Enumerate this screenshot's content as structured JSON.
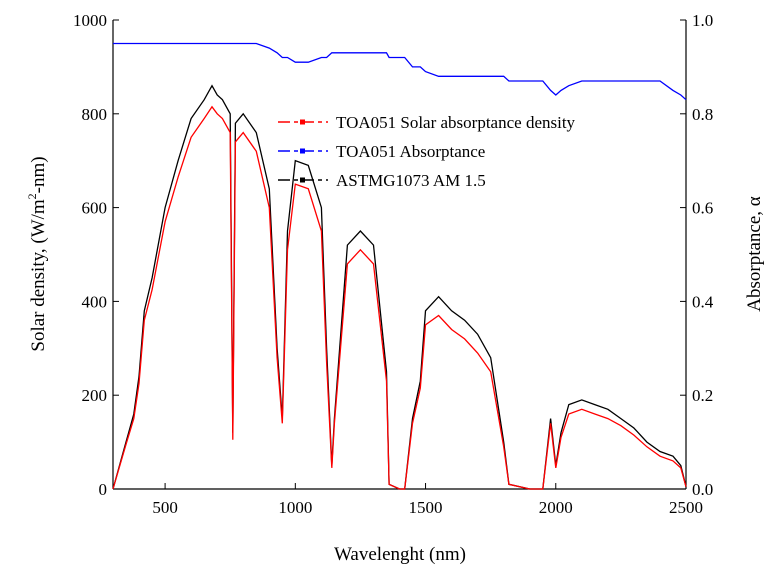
{
  "chart_data": {
    "type": "line",
    "x_label": "Wavelenght (nm)",
    "y_label": [
      "Solar density, (W/m",
      "2",
      "-nm)"
    ],
    "y2_label": "Absorptance, α",
    "x": [
      300,
      350,
      380,
      400,
      420,
      450,
      500,
      550,
      600,
      650,
      680,
      700,
      720,
      750,
      760,
      770,
      800,
      850,
      900,
      930,
      950,
      970,
      1000,
      1050,
      1100,
      1120,
      1140,
      1150,
      1200,
      1250,
      1300,
      1350,
      1360,
      1400,
      1420,
      1450,
      1480,
      1500,
      1550,
      1600,
      1650,
      1700,
      1750,
      1800,
      1820,
      1900,
      1950,
      1980,
      2000,
      2020,
      2050,
      2100,
      2150,
      2200,
      2250,
      2300,
      2350,
      2400,
      2450,
      2480,
      2500
    ],
    "series": [
      {
        "name": "TOA051 Solar absorptance density",
        "color": "#ff0000",
        "values": [
          0,
          95,
          150,
          225,
          360,
          425,
          570,
          665,
          750,
          790,
          815,
          800,
          790,
          760,
          105,
          740,
          760,
          720,
          600,
          280,
          140,
          510,
          650,
          640,
          550,
          270,
          45,
          140,
          480,
          510,
          480,
          230,
          10,
          0,
          0,
          140,
          215,
          350,
          370,
          340,
          320,
          290,
          250,
          90,
          10,
          0,
          0,
          140,
          45,
          110,
          160,
          170,
          160,
          150,
          135,
          115,
          90,
          70,
          60,
          45,
          5
        ]
      },
      {
        "name": "TOA051 Absorptance",
        "color": "#0000ff",
        "axis": "y2",
        "values": [
          0.95,
          0.95,
          0.95,
          0.95,
          0.95,
          0.95,
          0.95,
          0.95,
          0.95,
          0.95,
          0.95,
          0.95,
          0.95,
          0.95,
          0.95,
          0.95,
          0.95,
          0.95,
          0.94,
          0.93,
          0.92,
          0.92,
          0.91,
          0.91,
          0.92,
          0.92,
          0.93,
          0.93,
          0.93,
          0.93,
          0.93,
          0.93,
          0.92,
          0.92,
          0.92,
          0.9,
          0.9,
          0.89,
          0.88,
          0.88,
          0.88,
          0.88,
          0.88,
          0.88,
          0.87,
          0.87,
          0.87,
          0.85,
          0.84,
          0.85,
          0.86,
          0.87,
          0.87,
          0.87,
          0.87,
          0.87,
          0.87,
          0.87,
          0.85,
          0.84,
          0.83
        ]
      },
      {
        "name": "ASTMG1073 AM 1.5",
        "color": "#000000",
        "values": [
          0,
          100,
          160,
          240,
          380,
          450,
          600,
          700,
          790,
          830,
          860,
          840,
          830,
          800,
          120,
          780,
          800,
          760,
          640,
          300,
          150,
          550,
          700,
          690,
          600,
          300,
          50,
          150,
          520,
          550,
          520,
          250,
          10,
          0,
          0,
          150,
          230,
          380,
          410,
          380,
          360,
          330,
          280,
          100,
          10,
          0,
          0,
          150,
          50,
          120,
          180,
          190,
          180,
          170,
          150,
          130,
          100,
          80,
          70,
          50,
          5
        ]
      }
    ],
    "xlim": [
      300,
      2500
    ],
    "xticks": [
      500,
      1000,
      1500,
      2000,
      2500
    ],
    "ylim": [
      0,
      1000
    ],
    "yticks": [
      0,
      200,
      400,
      600,
      800,
      1000
    ],
    "y2lim": [
      0,
      1
    ],
    "y2ticks": [
      {
        "value": 0,
        "label": "0.0"
      },
      0.2,
      0.4,
      0.6,
      0.8,
      {
        "value": 1,
        "label": "1.0"
      }
    ],
    "legend": "upper-right"
  }
}
